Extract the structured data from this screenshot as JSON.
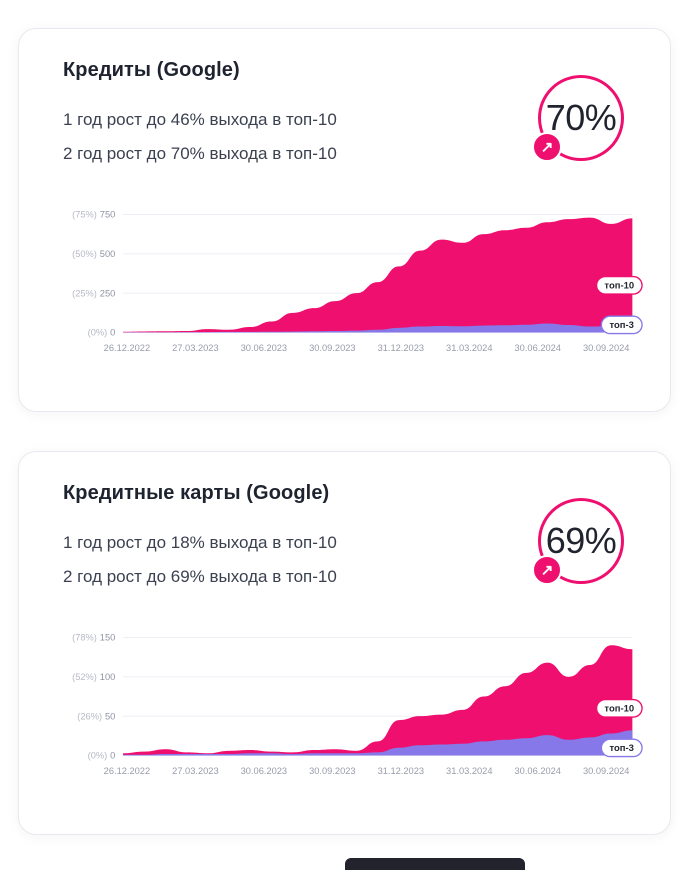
{
  "colors": {
    "pink": "#EF0F6E",
    "purple": "#8678E9",
    "grid": "#ECEDF3",
    "axis": "#8F93A3",
    "axis_light": "#B6B9C7",
    "title_text": "#1E2330",
    "body_text": "#3B4150",
    "bottom_bar": "#23232D"
  },
  "cards": [
    {
      "title": "Кредиты (Google)",
      "lines": [
        "1 год рост до 46% выхода в топ-10",
        "2 год рост до 70% выхода в топ-10"
      ],
      "badge_value": "70%",
      "badge_arrow": "↗",
      "chart_data": {
        "type": "area",
        "title": "Кредиты (Google)",
        "xlabel": "",
        "ylabel": "",
        "x_labels": [
          "26.12.2022",
          "27.03.2023",
          "30.06.2023",
          "30.09.2023",
          "31.12.2023",
          "31.03.2024",
          "30.06.2024",
          "30.09.2024"
        ],
        "y_ticks": [
          {
            "percent": "(75%)",
            "value": 750
          },
          {
            "percent": "(50%)",
            "value": 500
          },
          {
            "percent": "(25%)",
            "value": 250
          },
          {
            "percent": "(0%)",
            "value": 0
          }
        ],
        "ylim": [
          0,
          750
        ],
        "grid": "horizontal",
        "legend_position": "right-overlay",
        "series": [
          {
            "name": "топ-10",
            "color": "#EF0F6E",
            "values": [
              5,
              7,
              8,
              10,
              22,
              18,
              35,
              70,
              125,
              155,
              200,
              250,
              320,
              420,
              520,
              590,
              570,
              625,
              650,
              665,
              700,
              720,
              730,
              690,
              725
            ]
          },
          {
            "name": "топ-3",
            "color": "#8678E9",
            "values": [
              2,
              2,
              2,
              3,
              3,
              4,
              4,
              5,
              6,
              8,
              10,
              12,
              18,
              30,
              38,
              42,
              40,
              44,
              46,
              50,
              58,
              48,
              38,
              42,
              48
            ]
          }
        ]
      }
    },
    {
      "title": "Кредитные карты (Google)",
      "lines": [
        "1 год рост до 18% выхода в топ-10",
        "2 год рост до 69% выхода в топ-10"
      ],
      "badge_value": "69%",
      "badge_arrow": "↗",
      "chart_data": {
        "type": "area",
        "title": "Кредитные карты (Google)",
        "xlabel": "",
        "ylabel": "",
        "x_labels": [
          "26.12.2022",
          "27.03.2023",
          "30.06.2023",
          "30.09.2023",
          "31.12.2023",
          "31.03.2024",
          "30.06.2024",
          "30.09.2024"
        ],
        "y_ticks": [
          {
            "percent": "(78%)",
            "value": 150
          },
          {
            "percent": "(52%)",
            "value": 100
          },
          {
            "percent": "(26%)",
            "value": 50
          },
          {
            "percent": "(0%)",
            "value": 0
          }
        ],
        "ylim": [
          0,
          150
        ],
        "grid": "horizontal",
        "legend_position": "right-overlay",
        "series": [
          {
            "name": "топ-10",
            "color": "#EF0F6E",
            "values": [
              3,
              5,
              8,
              4,
              3,
              6,
              7,
              5,
              4,
              7,
              8,
              6,
              18,
              45,
              50,
              52,
              58,
              75,
              88,
              105,
              118,
              100,
              115,
              140,
              135
            ]
          },
          {
            "name": "топ-3",
            "color": "#8678E9",
            "values": [
              1,
              1,
              2,
              2,
              2,
              2,
              3,
              3,
              2,
              3,
              3,
              3,
              4,
              10,
              13,
              14,
              15,
              18,
              20,
              22,
              26,
              20,
              23,
              28,
              32
            ]
          }
        ]
      }
    }
  ]
}
